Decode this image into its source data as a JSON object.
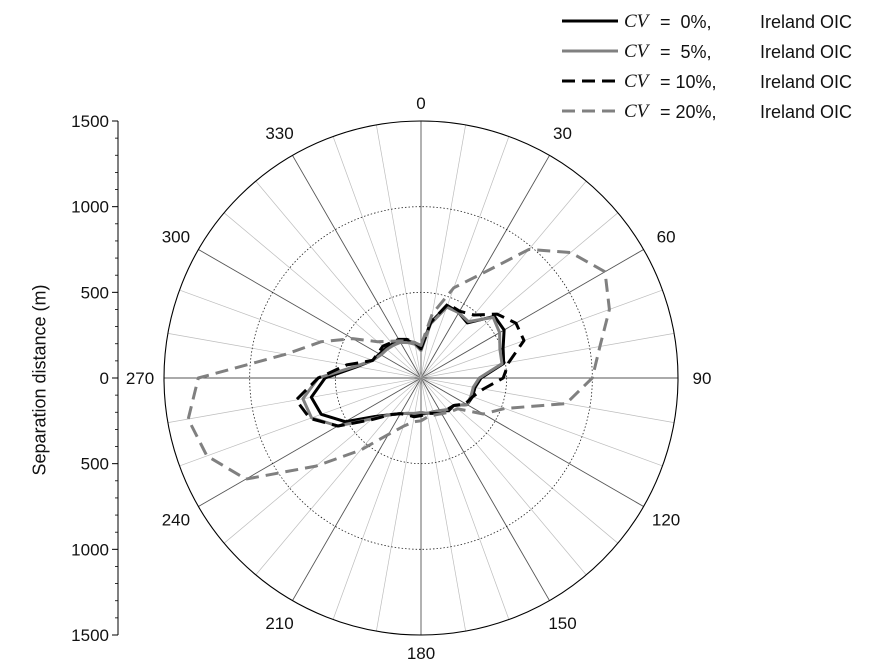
{
  "chart_data": {
    "type": "polar-line",
    "ylabel": "Separation distance (m)",
    "radial_ticks": [
      1500,
      1000,
      500,
      0,
      500,
      1000,
      1500
    ],
    "radial_max": 1500,
    "grid_circles": [
      500,
      1000
    ],
    "angle_labels": [
      0,
      30,
      60,
      90,
      120,
      150,
      180,
      210,
      240,
      270,
      300,
      330
    ],
    "angle_step": 10,
    "series": [
      {
        "name": "CV = 0%,  Ireland OIC",
        "label_prefix": "CV",
        "label_value": "=  0%,",
        "label_site": "Ireland OIC",
        "style": "solid",
        "color": "#000000",
        "r": [
          170,
          330,
          450,
          440,
          420,
          560,
          560,
          510,
          490,
          350,
          320,
          320,
          310,
          250,
          250,
          220,
          210,
          210,
          210,
          220,
          220,
          240,
          280,
          350,
          510,
          620,
          650,
          560,
          380,
          300,
          280,
          270,
          260,
          250,
          230,
          210
        ]
      },
      {
        "name": "CV = 5%,  Ireland OIC",
        "label_prefix": "CV",
        "label_value": "=  5%,",
        "label_site": "Ireland OIC",
        "style": "solid",
        "color": "#808080",
        "r": [
          160,
          320,
          440,
          440,
          430,
          550,
          530,
          490,
          480,
          340,
          310,
          310,
          310,
          250,
          240,
          220,
          210,
          210,
          200,
          210,
          220,
          240,
          280,
          370,
          560,
          680,
          700,
          600,
          390,
          300,
          270,
          260,
          250,
          240,
          220,
          200
        ]
      },
      {
        "name": "CV = 10%,  Ireland OIC",
        "label_prefix": "CV",
        "label_value": "= 10%,",
        "label_site": "Ireland OIC",
        "style": "dashed",
        "color": "#000000",
        "r": [
          170,
          330,
          460,
          450,
          480,
          580,
          640,
          640,
          520,
          480,
          370,
          320,
          300,
          250,
          240,
          240,
          220,
          210,
          220,
          230,
          230,
          240,
          280,
          380,
          560,
          690,
          740,
          600,
          440,
          300,
          290,
          290,
          270,
          260,
          240,
          210
        ]
      },
      {
        "name": "CV = 20%,  Ireland OIC",
        "label_prefix": "CV",
        "label_value": "= 20%,",
        "label_site": "Ireland OIC",
        "style": "dashed",
        "color": "#808080",
        "r": [
          190,
          380,
          560,
          700,
          980,
          1140,
          1240,
          1170,
          1060,
          1000,
          860,
          520,
          420,
          280,
          260,
          240,
          230,
          230,
          250,
          260,
          300,
          380,
          550,
          800,
          1180,
          1330,
          1380,
          1300,
          800,
          620,
          460,
          330,
          280,
          250,
          230,
          210
        ]
      }
    ]
  }
}
